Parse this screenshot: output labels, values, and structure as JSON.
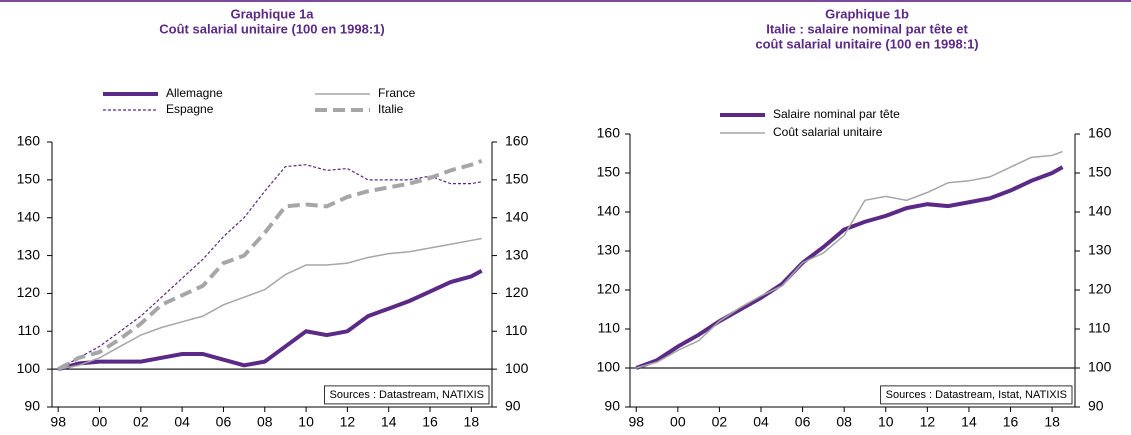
{
  "chart_data": [
    {
      "type": "line",
      "title": "Graphique 1a",
      "subtitle": [
        "Coût salarial unitaire (100 en 1998:1)"
      ],
      "annotation": "Sources : Datastream, NATIXIS",
      "x": [
        1998,
        1999,
        2000,
        2001,
        2002,
        2003,
        2004,
        2005,
        2006,
        2007,
        2008,
        2009,
        2010,
        2011,
        2012,
        2013,
        2014,
        2015,
        2016,
        2017,
        2018,
        2018.5
      ],
      "series": [
        {
          "name": "Allemagne",
          "color": "#5b2a86",
          "width": 4,
          "dash": false,
          "values": [
            100,
            101.5,
            102,
            102,
            102,
            103,
            104,
            104,
            102.5,
            101,
            102,
            106,
            110,
            109,
            110,
            114,
            116,
            118,
            120.5,
            123,
            124.5,
            126
          ]
        },
        {
          "name": "France",
          "color": "#a6a6a6",
          "width": 1.5,
          "dash": false,
          "values": [
            100,
            101,
            103,
            106,
            109,
            111,
            112.5,
            114,
            117,
            119,
            121,
            125,
            127.5,
            127.5,
            128,
            129.5,
            130.5,
            131,
            132,
            133,
            134,
            134.5
          ]
        },
        {
          "name": "Espagne",
          "color": "#5b2a86",
          "width": 1.2,
          "dash": true,
          "values": [
            100,
            103,
            106,
            110,
            114,
            119,
            124,
            129,
            135,
            140,
            147,
            153.5,
            154,
            152.5,
            153,
            150,
            150,
            150,
            151,
            149,
            149,
            149.5
          ]
        },
        {
          "name": "Italie",
          "color": "#a6a6a6",
          "width": 4,
          "dash": true,
          "values": [
            100,
            103,
            104.5,
            108,
            112,
            117,
            119.5,
            122,
            128,
            130,
            136,
            143,
            143.5,
            143,
            145.5,
            147,
            148,
            149,
            150.5,
            152.5,
            154,
            155
          ]
        }
      ],
      "xlim": [
        1997.7,
        2019
      ],
      "xticks": [
        {
          "value": 1998,
          "label": "98"
        },
        {
          "value": 2000,
          "label": "00"
        },
        {
          "value": 2002,
          "label": "02"
        },
        {
          "value": 2004,
          "label": "04"
        },
        {
          "value": 2006,
          "label": "06"
        },
        {
          "value": 2008,
          "label": "08"
        },
        {
          "value": 2010,
          "label": "10"
        },
        {
          "value": 2012,
          "label": "12"
        },
        {
          "value": 2014,
          "label": "14"
        },
        {
          "value": 2016,
          "label": "16"
        },
        {
          "value": 2018,
          "label": "18"
        }
      ],
      "ylim": [
        90,
        160
      ],
      "yticks": [
        90,
        100,
        110,
        120,
        130,
        140,
        150,
        160
      ],
      "y2lim": [
        90,
        160
      ],
      "y2ticks": [
        90,
        100,
        110,
        120,
        130,
        140,
        150,
        160
      ],
      "hline": 100
    },
    {
      "type": "line",
      "title": "Graphique 1b",
      "subtitle": [
        "Italie : salaire nominal par tête et",
        "coût salarial unitaire (100 en 1998:1)"
      ],
      "annotation": "Sources : Datastream, Istat, NATIXIS",
      "x": [
        1998,
        1999,
        2000,
        2001,
        2002,
        2003,
        2004,
        2005,
        2006,
        2007,
        2008,
        2009,
        2010,
        2011,
        2012,
        2013,
        2014,
        2015,
        2016,
        2017,
        2018,
        2018.5
      ],
      "series": [
        {
          "name": "Salaire nominal par tête",
          "color": "#5b2a86",
          "width": 4,
          "dash": false,
          "values": [
            100,
            102,
            105.5,
            108.5,
            112,
            115,
            118,
            121.5,
            127,
            131,
            135.5,
            137.5,
            139,
            141,
            142,
            141.5,
            142.5,
            143.5,
            145.5,
            148,
            150,
            151.5
          ]
        },
        {
          "name": "Coût salarial unitaire",
          "color": "#a6a6a6",
          "width": 1.5,
          "dash": false,
          "values": [
            100,
            101.5,
            104.5,
            107,
            112,
            115.5,
            118.5,
            121,
            127,
            129.5,
            134,
            143,
            144,
            143,
            145,
            147.5,
            148,
            149,
            151.5,
            154,
            154.5,
            155.5
          ]
        }
      ],
      "xlim": [
        1997.7,
        2019.1
      ],
      "xticks": [
        {
          "value": 1998,
          "label": "98"
        },
        {
          "value": 2000,
          "label": "00"
        },
        {
          "value": 2002,
          "label": "02"
        },
        {
          "value": 2004,
          "label": "04"
        },
        {
          "value": 2006,
          "label": "06"
        },
        {
          "value": 2008,
          "label": "08"
        },
        {
          "value": 2010,
          "label": "10"
        },
        {
          "value": 2012,
          "label": "12"
        },
        {
          "value": 2014,
          "label": "14"
        },
        {
          "value": 2016,
          "label": "16"
        },
        {
          "value": 2018,
          "label": "18"
        }
      ],
      "ylim": [
        90,
        160
      ],
      "yticks": [
        90,
        100,
        110,
        120,
        130,
        140,
        150,
        160
      ],
      "y2lim": [
        90,
        160
      ],
      "y2ticks": [
        90,
        100,
        110,
        120,
        130,
        140,
        150,
        160
      ],
      "hline": 100
    }
  ]
}
